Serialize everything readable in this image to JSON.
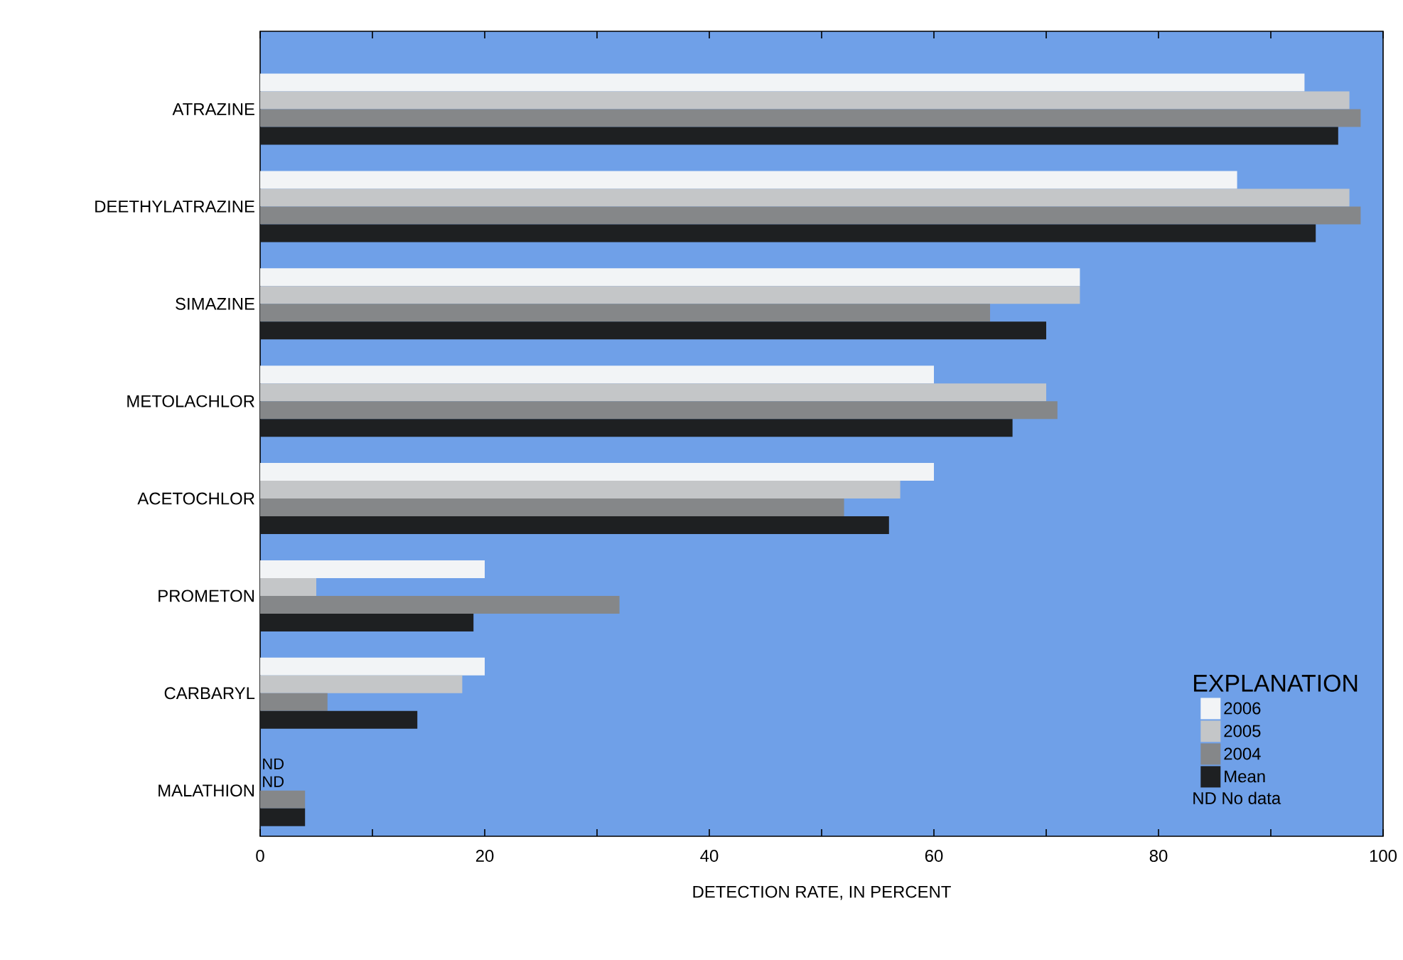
{
  "chart_data": {
    "type": "bar",
    "orientation": "horizontal",
    "xlabel": "DETECTION RATE, IN PERCENT",
    "legend_title": "EXPLANATION",
    "legend": "bottom right",
    "categories": [
      "ATRAZINE",
      "DEETHYLATRAZINE",
      "SIMAZINE",
      "METOLACHLOR",
      "ACETOCHLOR",
      "PROMETON",
      "CARBARYL",
      "MALATHION"
    ],
    "series": [
      {
        "name": "2006",
        "color": "#f2f4f6",
        "values": [
          93,
          87,
          73,
          60,
          60,
          20,
          20,
          null
        ]
      },
      {
        "name": "2005",
        "color": "#c4c6c8",
        "values": [
          97,
          97,
          73,
          70,
          57,
          5,
          18,
          null
        ]
      },
      {
        "name": "2004",
        "color": "#858789",
        "values": [
          98,
          98,
          65,
          71,
          52,
          32,
          6,
          4
        ]
      },
      {
        "name": "Mean",
        "color": "#1e2022",
        "values": [
          96,
          94,
          70,
          67,
          56,
          19,
          14,
          4
        ]
      }
    ],
    "xlim": [
      0,
      100
    ],
    "xticks": [
      0,
      {
        "value": 10,
        "label": null
      },
      20,
      {
        "value": 30,
        "label": null
      },
      40,
      {
        "value": 50,
        "label": null
      },
      60,
      {
        "value": 70,
        "label": null
      },
      80,
      {
        "value": 90,
        "label": null
      },
      100
    ],
    "annotations": [
      {
        "text": "ND",
        "x": 0,
        "y": "MALATHION"
      },
      {
        "text": "ND",
        "x": 0,
        "y": "MALATHION"
      },
      "ND No data"
    ]
  }
}
